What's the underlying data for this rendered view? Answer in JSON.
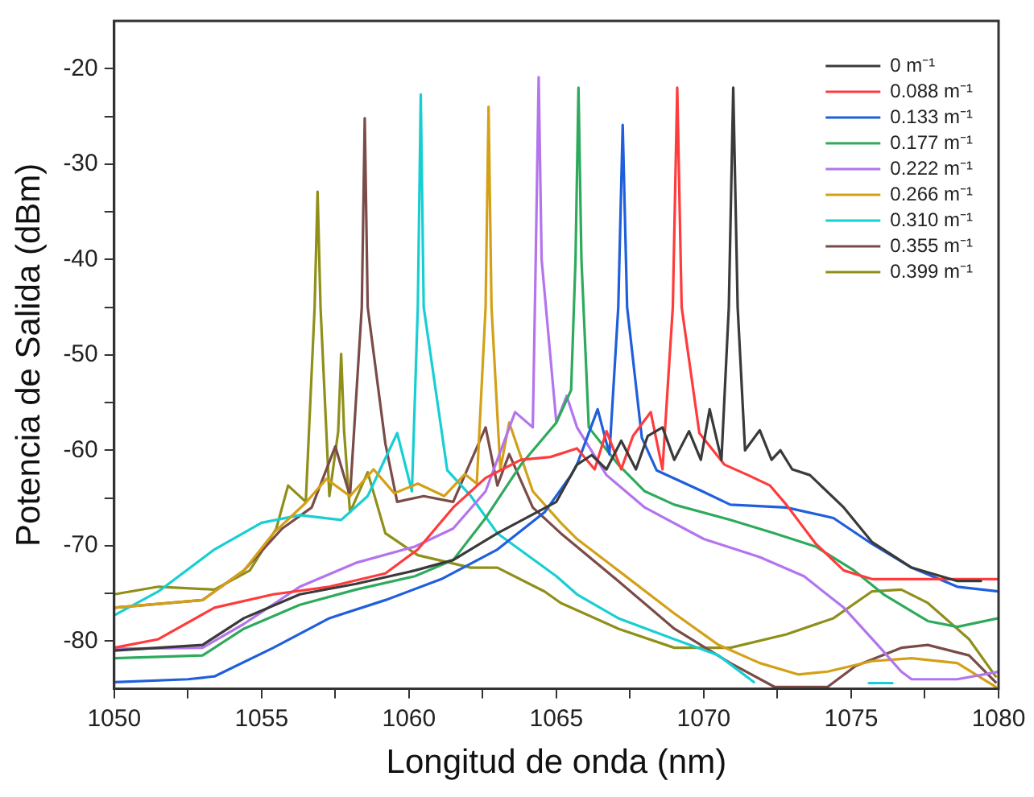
{
  "chart_data": {
    "type": "line",
    "xlabel": "Longitud de onda (nm)",
    "ylabel": "Potencia de Salida (dBm)",
    "xlim": [
      1050,
      1080
    ],
    "ylim": [
      -85,
      -15
    ],
    "xticks": [
      1050,
      {
        "value": 1052.5,
        "label": null
      },
      1055,
      {
        "value": 1057.5,
        "label": null
      },
      1060,
      {
        "value": 1062.5,
        "label": null
      },
      1065,
      {
        "value": 1067.5,
        "label": null
      },
      1070,
      {
        "value": 1072.5,
        "label": null
      },
      1075,
      {
        "value": 1077.5,
        "label": null
      },
      1080
    ],
    "yticks": [
      -80,
      {
        "value": -75,
        "label": null
      },
      -70,
      {
        "value": -65,
        "label": null
      },
      -60,
      {
        "value": -55,
        "label": null
      },
      -50,
      {
        "value": -45,
        "label": null
      },
      -40,
      {
        "value": -35,
        "label": null
      },
      -30,
      {
        "value": -25,
        "label": null
      },
      -20
    ],
    "grid": false,
    "legend": "top right",
    "marker": "none",
    "line_style": "solid",
    "series": [
      {
        "name": "0 m⁻¹",
        "color": "#3a3a3a",
        "x": [
          1050,
          1053,
          1054.4,
          1056.3,
          1058.2,
          1060.2,
          1061.5,
          1063,
          1065,
          1065.7,
          1066.2,
          1066.7,
          1067.2,
          1067.7,
          1068.1,
          1068.6,
          1069,
          1069.5,
          1069.9,
          1070.2,
          1070.6,
          1070.85,
          1071,
          1071.15,
          1071.4,
          1071.9,
          1072.3,
          1072.6,
          1073,
          1073.6,
          1074.75,
          1075.7,
          1077.05,
          1078.6,
          1079.4
        ],
        "values": [
          -81,
          -80.4,
          -77.6,
          -75.1,
          -74,
          -72.6,
          -71.5,
          -68.7,
          -65.4,
          -61.5,
          -60.5,
          -62,
          -59,
          -62,
          -58.5,
          -57.6,
          -61,
          -58,
          -61,
          -55.7,
          -61,
          -45,
          -22,
          -45,
          -60,
          -57.9,
          -61,
          -60,
          -62,
          -62.6,
          -66,
          -69.6,
          -72.3,
          -73.7,
          -73.7
        ]
      },
      {
        "name": "0.088 m⁻¹",
        "color": "#ff3b3b",
        "x": [
          1050,
          1051.5,
          1053.4,
          1055.4,
          1057.3,
          1059.2,
          1060.3,
          1061.5,
          1062.6,
          1063.8,
          1064.8,
          1065.7,
          1066.3,
          1066.7,
          1067.2,
          1067.6,
          1068.2,
          1068.6,
          1068.95,
          1069.1,
          1069.25,
          1069.85,
          1070.7,
          1071.5,
          1072.25,
          1072.8,
          1073.8,
          1074.75,
          1075.7,
          1080
        ],
        "values": [
          -80.7,
          -79.8,
          -76.5,
          -75.1,
          -74.3,
          -72.9,
          -70.4,
          -66,
          -62.9,
          -61,
          -60.7,
          -59.8,
          -62,
          -58,
          -62,
          -58.5,
          -56,
          -62,
          -45,
          -22,
          -45,
          -58.2,
          -61.5,
          -62.6,
          -63.7,
          -65.7,
          -69.8,
          -72.6,
          -73.5,
          -73.5
        ]
      },
      {
        "name": "0.133 m⁻¹",
        "color": "#1f5fdb",
        "x": [
          1050,
          1052.5,
          1053.4,
          1055.4,
          1057.3,
          1059.2,
          1061.1,
          1063,
          1064.6,
          1065.5,
          1065.7,
          1066.4,
          1066.8,
          1067.1,
          1067.25,
          1067.4,
          1067.9,
          1068.4,
          1069.95,
          1070.9,
          1072.8,
          1074.4,
          1075.7,
          1077.05,
          1078.6,
          1080
        ],
        "values": [
          -84.3,
          -84,
          -83.7,
          -80.7,
          -77.6,
          -75.7,
          -73.5,
          -70.4,
          -66.5,
          -62.6,
          -61.5,
          -55.7,
          -60.4,
          -45,
          -25.9,
          -45,
          -58.7,
          -62.1,
          -64.3,
          -65.7,
          -66,
          -67.1,
          -69.8,
          -72.3,
          -74.3,
          -74.8
        ]
      },
      {
        "name": "0.177 m⁻¹",
        "color": "#2eaa5c",
        "x": [
          1050,
          1053,
          1054.4,
          1056.3,
          1058.2,
          1060.2,
          1061.5,
          1062.6,
          1063.8,
          1065,
          1065.5,
          1065.65,
          1065.75,
          1065.85,
          1066.1,
          1067.1,
          1068,
          1069,
          1070.9,
          1072.4,
          1073.8,
          1075.1,
          1076.1,
          1077.6,
          1078.6,
          1080
        ],
        "values": [
          -81.8,
          -81.5,
          -78.7,
          -76.2,
          -74.6,
          -73.2,
          -71.5,
          -67.1,
          -61.5,
          -57.1,
          -53.7,
          -40,
          -22,
          -40,
          -57.6,
          -61.5,
          -64.3,
          -65.7,
          -67.3,
          -68.7,
          -70.1,
          -72.6,
          -75.1,
          -77.9,
          -78.5,
          -77.6
        ]
      },
      {
        "name": "0.222 m⁻¹",
        "color": "#b374ee",
        "x": [
          1050,
          1053,
          1054.4,
          1056.3,
          1058.2,
          1060.2,
          1061.5,
          1062.6,
          1063.6,
          1064.2,
          1064.3,
          1064.4,
          1064.5,
          1065,
          1065.35,
          1065.7,
          1066.7,
          1068,
          1070,
          1071.9,
          1073.4,
          1074.75,
          1075.9,
          1076.7,
          1077.05,
          1078.6,
          1080
        ],
        "values": [
          -80.8,
          -80.7,
          -78.2,
          -74.3,
          -71.8,
          -70.1,
          -68.2,
          -64.3,
          -56,
          -57.6,
          -40,
          -20.9,
          -40,
          -57.1,
          -54.3,
          -57.6,
          -62.6,
          -66,
          -69.3,
          -71.2,
          -73.2,
          -76.5,
          -80.4,
          -83.2,
          -84,
          -84,
          -83.2
        ]
      },
      {
        "name": "0.266 m⁻¹",
        "color": "#d4a017",
        "x": [
          1050,
          1053,
          1054.4,
          1055.4,
          1056.5,
          1057.2,
          1058,
          1058.8,
          1059.5,
          1060.3,
          1061.2,
          1061.9,
          1062.3,
          1062.6,
          1062.7,
          1062.8,
          1063.1,
          1063.4,
          1064.2,
          1065.15,
          1065.7,
          1067.1,
          1069,
          1070.5,
          1071.9,
          1073.2,
          1074.2,
          1075.7,
          1077.05,
          1078.6,
          1079.9
        ],
        "values": [
          -76.5,
          -75.7,
          -72.6,
          -68.7,
          -65.5,
          -63,
          -64.8,
          -62,
          -64.5,
          -63.5,
          -64.8,
          -62.5,
          -63.5,
          -45,
          -24,
          -45,
          -62,
          -57.1,
          -64.3,
          -67.6,
          -69.3,
          -72.6,
          -77.1,
          -80.4,
          -82.3,
          -83.5,
          -83.2,
          -82.1,
          -81.8,
          -82.3,
          -84.8
        ]
      },
      {
        "name": "0.310 m⁻¹",
        "color": "#17cfd3",
        "x": [
          1050,
          1051.5,
          1053.4,
          1055,
          1056.3,
          1057.7,
          1058.6,
          1059.6,
          1060.1,
          1060.3,
          1060.4,
          1060.5,
          1061.3,
          1062.1,
          1063,
          1065,
          1065.7,
          1067.1,
          1069,
          1070.5,
          1071.7,
          1073,
          1075.6,
          1076.4
        ],
        "values": [
          -77.3,
          -74.8,
          -70.4,
          -67.6,
          -66.8,
          -67.3,
          -64.8,
          -58.2,
          -64.3,
          -45,
          -22.7,
          -45,
          -62.1,
          -64.8,
          -68.7,
          -73.2,
          -75.1,
          -77.6,
          -79.8,
          -81.5,
          -84.3,
          null,
          -84.4,
          -84.4
        ]
      },
      {
        "name": "0.355 m⁻¹",
        "color": "#7b4b48",
        "x": [
          1050,
          1053,
          1054.4,
          1055.7,
          1056.7,
          1057.5,
          1058,
          1058.4,
          1058.5,
          1058.6,
          1059.2,
          1059.6,
          1060.5,
          1061.5,
          1062.6,
          1063,
          1063.4,
          1064.2,
          1065.15,
          1067.1,
          1069,
          1070.9,
          1072.4,
          1074.2,
          1075.15,
          1076.7,
          1077.6,
          1079,
          1079.9
        ],
        "values": [
          -76.5,
          -75.7,
          -72.6,
          -68.2,
          -66,
          -59.6,
          -64.8,
          -45,
          -25.2,
          -45,
          -59.3,
          -65.4,
          -64.8,
          -65.4,
          -57.6,
          -63.7,
          -60.4,
          -66,
          -68.7,
          -73.7,
          -78.7,
          -82.3,
          -84.8,
          -84.8,
          -82.6,
          -80.7,
          -80.4,
          -81.5,
          -84.3
        ]
      },
      {
        "name": "0.399 m⁻¹",
        "color": "#8f8f1a",
        "x": [
          1050,
          1051.5,
          1053.4,
          1054.6,
          1055.5,
          1055.9,
          1056.5,
          1056.8,
          1056.9,
          1057,
          1057.3,
          1057.6,
          1057.7,
          1057.8,
          1058,
          1058.6,
          1059.2,
          1060.3,
          1062.1,
          1063,
          1064.6,
          1065.15,
          1067.1,
          1069,
          1070.9,
          1072.8,
          1074.4,
          1075.7,
          1076.7,
          1077.6,
          1079,
          1079.9
        ],
        "values": [
          -75.1,
          -74.3,
          -74.6,
          -72.6,
          -68.2,
          -63.7,
          -65.4,
          -45,
          -32.9,
          -45,
          -64.8,
          -58,
          -49.9,
          -58,
          -66.5,
          -62.3,
          -68.7,
          -71,
          -72.3,
          -72.3,
          -74.8,
          -76,
          -78.7,
          -80.7,
          -80.7,
          -79.3,
          -77.6,
          -74.8,
          -74.6,
          -76,
          -79.8,
          -83.7
        ]
      }
    ]
  }
}
